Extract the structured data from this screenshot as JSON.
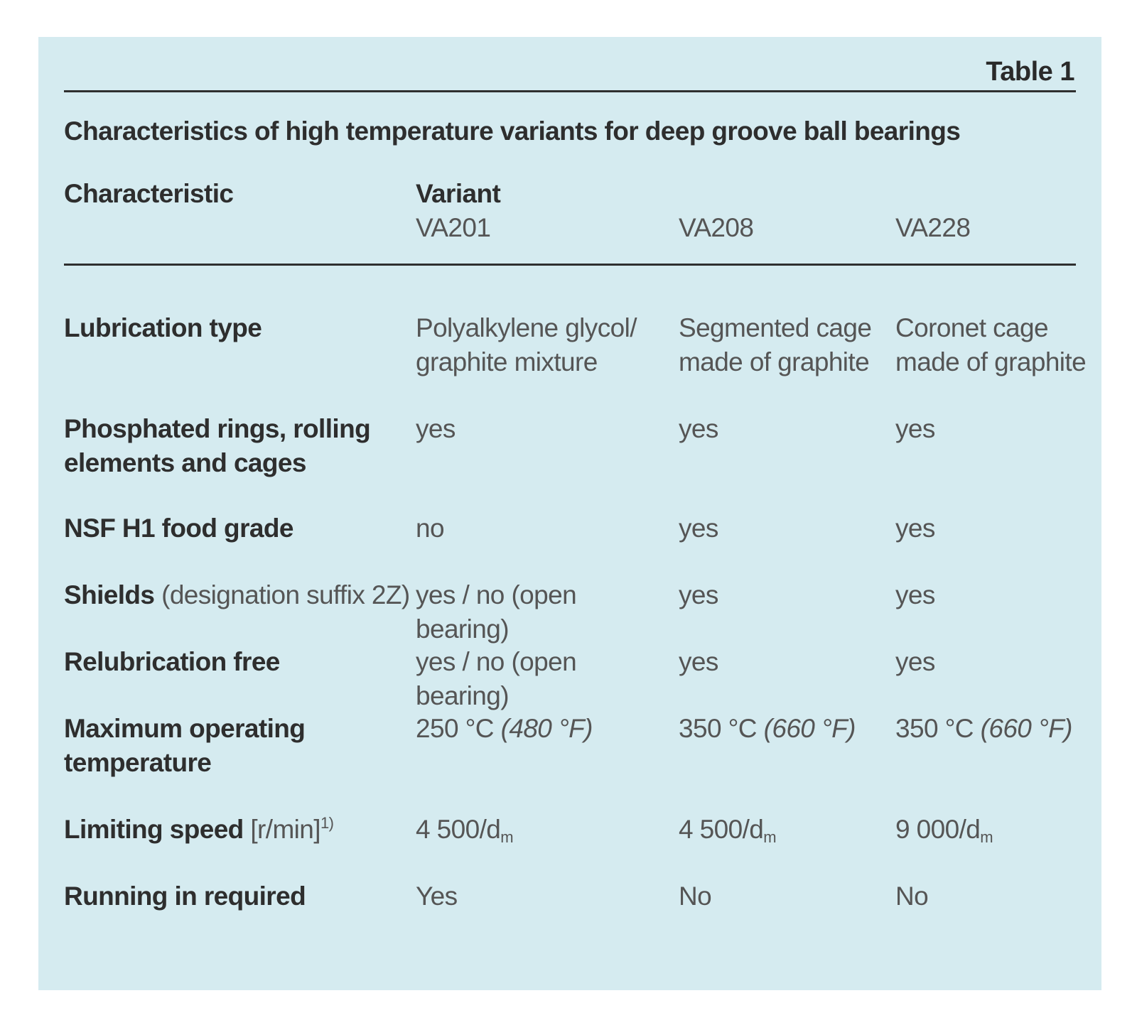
{
  "table": {
    "label": "Table 1",
    "caption": "Characteristics of high temperature variants for deep groove ball bearings",
    "header": {
      "characteristic": "Characteristic",
      "variant": "Variant",
      "variants": [
        "VA201",
        "VA208",
        "VA228"
      ]
    },
    "rows": [
      {
        "label": "Lubrication type",
        "values": [
          [
            "Polyalkylene glycol/",
            "graphite mixture"
          ],
          [
            "Segmented cage",
            "made of graphite"
          ],
          [
            "Coronet cage",
            "made of graphite"
          ]
        ]
      },
      {
        "label_lines": [
          "Phosphated rings, rolling",
          "elements and cages"
        ],
        "values": [
          "yes",
          "yes",
          "yes"
        ]
      },
      {
        "label": "NSF H1 food grade",
        "values": [
          "no",
          "yes",
          "yes"
        ]
      },
      {
        "label": "Shields",
        "label_note": "(designation suffix 2Z)",
        "values": [
          "yes / no (open bearing)",
          "yes",
          "yes"
        ]
      },
      {
        "label": "Relubrication free",
        "values": [
          "yes / no (open bearing)",
          "yes",
          "yes"
        ]
      },
      {
        "label_lines": [
          "Maximum operating",
          "temperature"
        ],
        "values": [
          {
            "celsius": "250 °C",
            "fahrenheit": "(480 °F)"
          },
          {
            "celsius": "350 °C",
            "fahrenheit": "(660 °F)"
          },
          {
            "celsius": "350 °C",
            "fahrenheit": "(660 °F)"
          }
        ]
      },
      {
        "label": "Limiting speed",
        "label_note": "[r/min]",
        "label_sup": "1)",
        "values": [
          {
            "num": "4 500/d",
            "sub": "m"
          },
          {
            "num": "4 500/d",
            "sub": "m"
          },
          {
            "num": "9 000/d",
            "sub": "m"
          }
        ]
      },
      {
        "label": "Running in required",
        "values": [
          "Yes",
          "No",
          "No"
        ]
      }
    ]
  }
}
